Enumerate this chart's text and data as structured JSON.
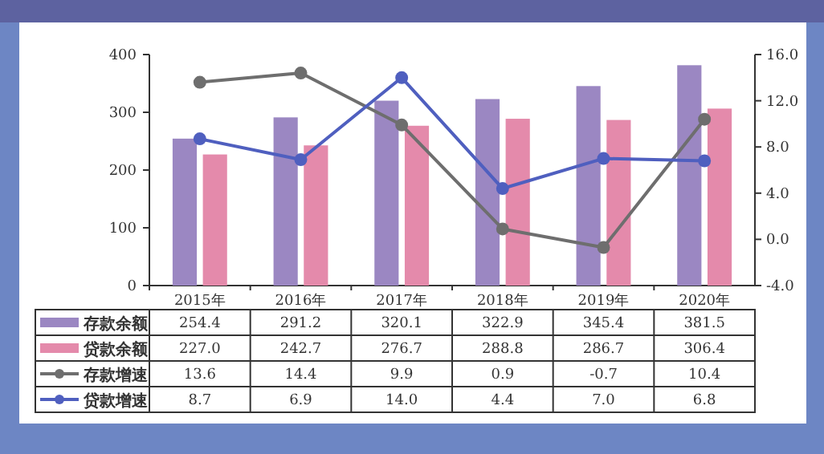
{
  "chart_data": {
    "type": "bar",
    "categories": [
      "2015年",
      "2016年",
      "2017年",
      "2018年",
      "2019年",
      "2020年"
    ],
    "series": [
      {
        "name": "存款余额",
        "color": "#9b87c2",
        "values": [
          254.4,
          291.2,
          320.1,
          322.9,
          345.4,
          381.5
        ],
        "value_labels": [
          "254.4",
          "291.2",
          "320.1",
          "322.9",
          "345.4",
          "381.5"
        ]
      },
      {
        "name": "贷款余额",
        "color": "#e48aab",
        "values": [
          227.0,
          242.7,
          276.7,
          288.8,
          286.7,
          306.4
        ],
        "value_labels": [
          "227.0",
          "242.7",
          "276.7",
          "288.8",
          "286.7",
          "306.4"
        ]
      },
      {
        "name": "存款增速",
        "type": "line",
        "axis": "y2",
        "color": "#6e6e6e",
        "values": [
          13.6,
          14.4,
          9.9,
          0.9,
          -0.7,
          10.4
        ],
        "value_labels": [
          "13.6",
          "14.4",
          "9.9",
          "0.9",
          "-0.7",
          "10.4"
        ]
      },
      {
        "name": "贷款增速",
        "type": "line",
        "axis": "y2",
        "color": "#4f5fbf",
        "values": [
          8.7,
          6.9,
          14.0,
          4.4,
          7.0,
          6.8
        ],
        "value_labels": [
          "8.7",
          "6.9",
          "14.0",
          "4.4",
          "7.0",
          "6.8"
        ]
      }
    ],
    "ylim": [
      0,
      400
    ],
    "yticks": [
      0,
      100,
      200,
      300,
      400
    ],
    "y2lim": [
      -4,
      16
    ],
    "y2ticks": [
      {
        "value": -4,
        "label": "-4.0"
      },
      {
        "value": 0,
        "label": "0.0"
      },
      {
        "value": 4,
        "label": "4.0"
      },
      {
        "value": 8,
        "label": "8.0"
      },
      {
        "value": 12,
        "label": "12.0"
      },
      {
        "value": 16,
        "label": "16.0"
      }
    ],
    "marker": "circle",
    "line_style": "solid",
    "legend": "bottom"
  }
}
